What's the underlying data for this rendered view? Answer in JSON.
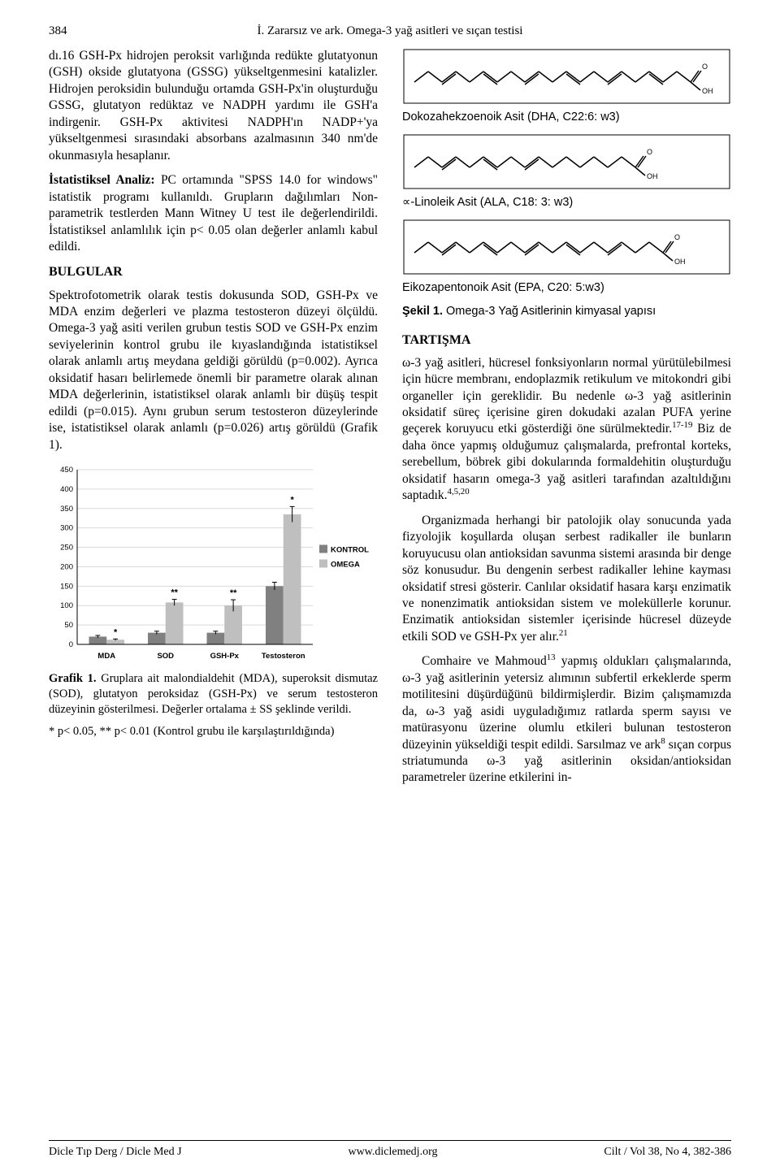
{
  "page_number": "384",
  "running_head": "İ. Zararsız ve ark. Omega-3 yağ asitleri ve sıçan testisi",
  "left": {
    "p1": "dı.16 GSH-Px hidrojen peroksit varlığında redükte glutatyonun (GSH) okside glutatyona (GSSG) yükseltgenmesini katalizler. Hidrojen peroksidin bulunduğu ortamda GSH-Px'in oluşturduğu GSSG, glutatyon redüktaz ve NADPH yardımı ile GSH'a indirgenir. GSH-Px aktivitesi NADPH'ın NADP+'ya yükseltgenmesi sırasındaki absorbans azalmasının 340 nm'de okunmasıyla hesaplanır.",
    "p2_lead": "İstatistiksel Analiz:",
    "p2": " PC ortamında \"SPSS 14.0 for windows\" istatistik programı kullanıldı. Grupların dağılımları Non-parametrik testlerden Mann Witney U test ile değerlendirildi. İstatistiksel anlamlılık için p< 0.05 olan değerler anlamlı kabul edildi.",
    "bulgular_title": "BULGULAR",
    "p3": "Spektrofotometrik olarak testis dokusunda SOD, GSH-Px ve MDA enzim değerleri ve plazma testosteron düzeyi ölçüldü. Omega-3 yağ asiti verilen grubun testis SOD ve GSH-Px enzim seviyelerinin kontrol grubu ile kıyaslandığında istatistiksel olarak anlamlı artış meydana geldiği görüldü (p=0.002). Ayrıca oksidatif hasarı belirlemede önemli bir parametre olarak alınan MDA değerlerinin, istatistiksel olarak anlamlı bir düşüş tespit edildi (p=0.015). Aynı grubun serum testosteron düzeylerinde ise, istatistiksel olarak anlamlı (p=0.026) artış görüldü (Grafik 1).",
    "chart": {
      "type": "bar",
      "ylim": [
        0,
        450
      ],
      "ytick_step": 50,
      "categories": [
        "MDA",
        "SOD",
        "GSH-Px",
        "Testosteron"
      ],
      "series": [
        {
          "name": "KONTROL",
          "color": "#808080",
          "values": [
            20,
            30,
            30,
            150
          ],
          "err": [
            3,
            4,
            4,
            10
          ]
        },
        {
          "name": "OMEGA",
          "color": "#bfbfbf",
          "values": [
            12,
            108,
            100,
            335
          ],
          "err": [
            2,
            8,
            15,
            20
          ]
        }
      ],
      "sig": {
        "MDA": "*",
        "SOD": "**",
        "GSH-Px": "**",
        "Testosteron": "*"
      },
      "axis_color": "#000000",
      "grid_color": "#d9d9d9",
      "font_family": "Arial, sans-serif",
      "font_size": 9.5,
      "bar_group_width": 0.6,
      "figure_w": 405,
      "figure_h": 250
    },
    "grafik_caption_lead": "Grafik 1.",
    "grafik_caption": " Gruplara ait malondialdehit (MDA), superoksit dismutaz (SOD), glutatyon peroksidaz (GSH-Px) ve serum testosteron düzeyinin gösterilmesi. Değerler ortalama ± SS şeklinde verildi.",
    "footnote": "* p< 0.05, ** p< 0.01 (Kontrol grubu ile karşılaştırıldığında)"
  },
  "right": {
    "chem1_label": "Dokozahekzoenoik Asit (DHA, C22:6: w3)",
    "chem2_label": "∝-Linoleik Asit (ALA, C18: 3: w3)",
    "chem3_label": "Eikozapentonoik Asit (EPA, C20: 5:w3)",
    "sekil_lead": "Şekil 1.",
    "sekil": " Omega-3 Yağ Asitlerinin kimyasal yapısı",
    "tartisma_title": "TARTIŞMA",
    "p1": "ω-3 yağ asitleri, hücresel fonksiyonların normal yürütülebilmesi için hücre membranı, endoplazmik retikulum ve mitokondri gibi organeller için gereklidir. Bu nedenle ω-3 yağ asitlerinin oksidatif süreç içerisine giren dokudaki azalan PUFA yerine geçerek koruyucu etki gösterdiği öne sürülmektedir.",
    "p1_sup": "17-19",
    "p1b": " Biz de daha önce yapmış olduğumuz çalışmalarda, prefrontal korteks, serebellum, böbrek gibi dokularında formaldehitin oluşturduğu oksidatif hasarın omega-3 yağ asitleri tarafından azaltıldığını saptadık.",
    "p1b_sup": "4,5,20",
    "p2": "Organizmada herhangi bir patolojik olay sonucunda yada fizyolojik koşullarda oluşan serbest radikaller ile bunların koruyucusu olan antioksidan savunma sistemi arasında bir denge söz konusudur. Bu dengenin serbest radikaller lehine kayması oksidatif stresi gösterir. Canlılar oksidatif hasara karşı enzimatik ve nonenzimatik antioksidan sistem ve moleküllerle korunur. Enzimatik antioksidan sistemler içerisinde hücresel düzeyde etkili SOD ve GSH-Px yer alır.",
    "p2_sup": "21",
    "p3a": "Comhaire ve Mahmoud",
    "p3_sup": "13",
    "p3b": " yapmış oldukları çalışmalarında, ω-3 yağ asitlerinin yetersiz alımının subfertil erkeklerde sperm motilitesini düşürdüğünü bildirmişlerdir. Bizim çalışmamızda da, ω-3 yağ asidi uyguladığımız ratlarda sperm sayısı ve matürasyonu üzerine olumlu etkileri bulunan testosteron düzeyinin yükseldiği tespit edildi. Sarsılmaz ve ark",
    "p3b_sup": "8",
    "p3c": " sıçan corpus striatumunda ω-3 yağ asitlerinin oksidan/antioksidan parametreler üzerine etkilerini in-"
  },
  "footer": {
    "left": "Dicle Tıp Derg / Dicle Med J",
    "center": "www.diclemedj.org",
    "right": "Cilt / Vol 38, No 4, 382-386"
  },
  "chem_structures": {
    "stroke": "#000000",
    "stroke_width": 1.5,
    "box_stroke": "#000000",
    "oh_label": "OH",
    "o_label": "O"
  }
}
